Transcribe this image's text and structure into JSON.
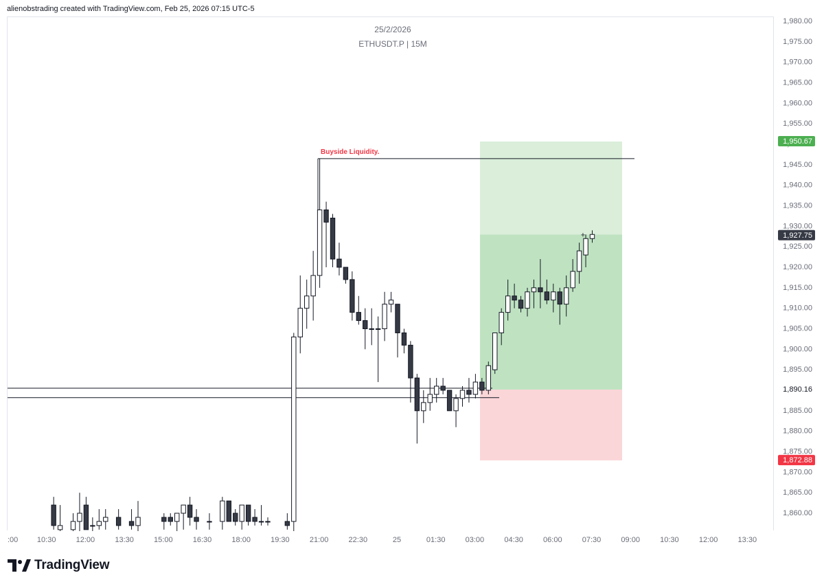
{
  "header": {
    "credit": "alienobstrading created with TradingView.com, Feb 25, 2026 07:15 UTC-5"
  },
  "footer": {
    "brand": "TradingView"
  },
  "chart_data": {
    "type": "candlestick",
    "title": "25/2/2026",
    "subtitle": "ETHUSDT.P | 15M",
    "ylim": [
      1855,
      1982
    ],
    "yticks": [
      1860,
      1865,
      1870,
      1875,
      1880,
      1885,
      1890,
      1895,
      1900,
      1905,
      1910,
      1915,
      1920,
      1925,
      1930,
      1935,
      1940,
      1945,
      1950,
      1955,
      1960,
      1965,
      1970,
      1975,
      1980
    ],
    "ytick_labels": [
      "1,860.00",
      "1,865.00",
      "1,870.00",
      "1,875.00",
      "1,880.00",
      "1,885.00",
      "1,890.00",
      "1,895.00",
      "1,900.00",
      "1,905.00",
      "1,910.00",
      "1,915.00",
      "1,920.00",
      "1,925.00",
      "1,930.00",
      "1,935.00",
      "1,940.00",
      "1,945.00",
      "1,950.00",
      "1,955.00",
      "1,960.00",
      "1,965.00",
      "1,970.00",
      "1,975.00",
      "1,980.00"
    ],
    "xtick_labels": [
      ":00",
      "10:30",
      "12:00",
      "13:30",
      "15:00",
      "16:30",
      "18:00",
      "19:30",
      "21:00",
      "22:30",
      "25",
      "01:30",
      "03:00",
      "04:30",
      "06:00",
      "07:30",
      "09:00",
      "10:30",
      "12:00",
      "13:30"
    ],
    "price_labels": [
      {
        "value": 1950.67,
        "text": "1,950.67",
        "color": "#4caf50"
      },
      {
        "value": 1927.75,
        "text": "1,927.75",
        "color": "#363a45"
      },
      {
        "value": 1890.16,
        "text": "1,890.16",
        "color": "#ffffff"
      },
      {
        "value": 1872.88,
        "text": "1,872.88",
        "color": "#f23645"
      }
    ],
    "annotations": [
      {
        "type": "text",
        "text": "Buyside Liquidity.",
        "color": "#f23645",
        "price": 1946.5
      },
      {
        "type": "line",
        "price": 1946.5
      },
      {
        "type": "line",
        "price": 1890.5
      },
      {
        "type": "line",
        "price": 1888.2
      }
    ],
    "position": {
      "entry": 1890.16,
      "target": 1950.67,
      "stop": 1872.88,
      "profit_color": "#4caf50",
      "loss_color": "#f23645"
    },
    "candles": [
      {
        "t": "10:45",
        "o": 1862,
        "h": 1864,
        "l": 1856,
        "c": 1857
      },
      {
        "t": "11:00",
        "o": 1856,
        "h": 1862,
        "l": 1854,
        "c": 1857
      },
      {
        "t": "11:30",
        "o": 1856,
        "h": 1860,
        "l": 1852,
        "c": 1858
      },
      {
        "t": "11:45",
        "o": 1858,
        "h": 1865,
        "l": 1855,
        "c": 1860
      },
      {
        "t": "12:00",
        "o": 1862,
        "h": 1864,
        "l": 1856,
        "c": 1856
      },
      {
        "t": "12:15",
        "o": 1857,
        "h": 1859,
        "l": 1854,
        "c": 1857
      },
      {
        "t": "12:30",
        "o": 1857,
        "h": 1861,
        "l": 1856,
        "c": 1858
      },
      {
        "t": "12:45",
        "o": 1858,
        "h": 1861,
        "l": 1856,
        "c": 1859
      },
      {
        "t": "13:15",
        "o": 1859,
        "h": 1861,
        "l": 1856,
        "c": 1857
      },
      {
        "t": "13:45",
        "o": 1858,
        "h": 1861,
        "l": 1856,
        "c": 1857
      },
      {
        "t": "14:00",
        "o": 1857,
        "h": 1863,
        "l": 1855,
        "c": 1859
      },
      {
        "t": "15:00",
        "o": 1859,
        "h": 1860,
        "l": 1856,
        "c": 1858
      },
      {
        "t": "15:15",
        "o": 1859,
        "h": 1860,
        "l": 1857,
        "c": 1858
      },
      {
        "t": "15:30",
        "o": 1858,
        "h": 1860,
        "l": 1855,
        "c": 1860
      },
      {
        "t": "15:45",
        "o": 1860,
        "h": 1862,
        "l": 1856,
        "c": 1862
      },
      {
        "t": "16:00",
        "o": 1862,
        "h": 1864,
        "l": 1857,
        "c": 1859
      },
      {
        "t": "16:15",
        "o": 1859,
        "h": 1861,
        "l": 1856,
        "c": 1858
      },
      {
        "t": "16:45",
        "o": 1858,
        "h": 1860,
        "l": 1856,
        "c": 1858
      },
      {
        "t": "17:15",
        "o": 1858,
        "h": 1864,
        "l": 1856,
        "c": 1863
      },
      {
        "t": "17:30",
        "o": 1863,
        "h": 1863,
        "l": 1858,
        "c": 1858
      },
      {
        "t": "17:45",
        "o": 1860,
        "h": 1861,
        "l": 1857,
        "c": 1858
      },
      {
        "t": "18:00",
        "o": 1858,
        "h": 1862,
        "l": 1856,
        "c": 1862
      },
      {
        "t": "18:15",
        "o": 1862,
        "h": 1862,
        "l": 1857,
        "c": 1858
      },
      {
        "t": "18:30",
        "o": 1859,
        "h": 1861,
        "l": 1857,
        "c": 1858
      },
      {
        "t": "18:45",
        "o": 1858,
        "h": 1862,
        "l": 1857,
        "c": 1858
      },
      {
        "t": "19:00",
        "o": 1858,
        "h": 1859,
        "l": 1857,
        "c": 1858
      },
      {
        "t": "19:45",
        "o": 1858,
        "h": 1860,
        "l": 1856,
        "c": 1857
      },
      {
        "t": "20:00",
        "o": 1858,
        "h": 1904,
        "l": 1852,
        "c": 1903
      },
      {
        "t": "20:15",
        "o": 1903,
        "h": 1918,
        "l": 1899,
        "c": 1910
      },
      {
        "t": "20:30",
        "o": 1910,
        "h": 1917,
        "l": 1905,
        "c": 1913
      },
      {
        "t": "20:45",
        "o": 1913,
        "h": 1924,
        "l": 1907,
        "c": 1918
      },
      {
        "t": "21:00",
        "o": 1918,
        "h": 1946.5,
        "l": 1915,
        "c": 1934
      },
      {
        "t": "21:15",
        "o": 1934,
        "h": 1936,
        "l": 1920,
        "c": 1931
      },
      {
        "t": "21:30",
        "o": 1932,
        "h": 1933,
        "l": 1920,
        "c": 1922
      },
      {
        "t": "21:45",
        "o": 1922,
        "h": 1926,
        "l": 1918,
        "c": 1920
      },
      {
        "t": "22:00",
        "o": 1920,
        "h": 1920,
        "l": 1916,
        "c": 1917
      },
      {
        "t": "22:15",
        "o": 1917,
        "h": 1919,
        "l": 1907,
        "c": 1909
      },
      {
        "t": "22:30",
        "o": 1909,
        "h": 1913,
        "l": 1906,
        "c": 1907
      },
      {
        "t": "22:45",
        "o": 1907,
        "h": 1910,
        "l": 1900,
        "c": 1905
      },
      {
        "t": "23:00",
        "o": 1905,
        "h": 1910,
        "l": 1901,
        "c": 1905
      },
      {
        "t": "23:15",
        "o": 1905,
        "h": 1908,
        "l": 1892,
        "c": 1905
      },
      {
        "t": "23:30",
        "o": 1905,
        "h": 1914,
        "l": 1902,
        "c": 1911
      },
      {
        "t": "23:45",
        "o": 1911,
        "h": 1914,
        "l": 1909,
        "c": 1912
      },
      {
        "t": "00:00",
        "o": 1911,
        "h": 1911,
        "l": 1898,
        "c": 1904
      },
      {
        "t": "00:15",
        "o": 1904,
        "h": 1905,
        "l": 1899,
        "c": 1901
      },
      {
        "t": "00:30",
        "o": 1901,
        "h": 1902,
        "l": 1887,
        "c": 1893
      },
      {
        "t": "00:45",
        "o": 1893,
        "h": 1894,
        "l": 1877,
        "c": 1885
      },
      {
        "t": "01:00",
        "o": 1885,
        "h": 1890,
        "l": 1882,
        "c": 1887
      },
      {
        "t": "01:15",
        "o": 1887,
        "h": 1893,
        "l": 1885,
        "c": 1889
      },
      {
        "t": "01:30",
        "o": 1889,
        "h": 1893,
        "l": 1887,
        "c": 1891
      },
      {
        "t": "01:45",
        "o": 1891,
        "h": 1893,
        "l": 1889,
        "c": 1890
      },
      {
        "t": "02:00",
        "o": 1890,
        "h": 1890,
        "l": 1885,
        "c": 1885
      },
      {
        "t": "02:15",
        "o": 1885,
        "h": 1889,
        "l": 1881,
        "c": 1888
      },
      {
        "t": "02:30",
        "o": 1888,
        "h": 1891,
        "l": 1886,
        "c": 1890
      },
      {
        "t": "02:45",
        "o": 1890,
        "h": 1893,
        "l": 1887,
        "c": 1889
      },
      {
        "t": "03:00",
        "o": 1889,
        "h": 1894,
        "l": 1888,
        "c": 1892
      },
      {
        "t": "03:15",
        "o": 1892,
        "h": 1893,
        "l": 1889,
        "c": 1890
      },
      {
        "t": "03:30",
        "o": 1890,
        "h": 1897,
        "l": 1889,
        "c": 1896
      },
      {
        "t": "03:45",
        "o": 1895,
        "h": 1904,
        "l": 1894,
        "c": 1904
      },
      {
        "t": "04:00",
        "o": 1904,
        "h": 1910,
        "l": 1901,
        "c": 1909
      },
      {
        "t": "04:15",
        "o": 1909,
        "h": 1917,
        "l": 1907,
        "c": 1913
      },
      {
        "t": "04:30",
        "o": 1913,
        "h": 1916,
        "l": 1910,
        "c": 1912
      },
      {
        "t": "04:45",
        "o": 1912,
        "h": 1913,
        "l": 1909,
        "c": 1910
      },
      {
        "t": "05:00",
        "o": 1910,
        "h": 1915,
        "l": 1908,
        "c": 1914
      },
      {
        "t": "05:15",
        "o": 1914,
        "h": 1917,
        "l": 1910,
        "c": 1915
      },
      {
        "t": "05:30",
        "o": 1915,
        "h": 1922,
        "l": 1910,
        "c": 1914
      },
      {
        "t": "05:45",
        "o": 1914,
        "h": 1917,
        "l": 1911,
        "c": 1912
      },
      {
        "t": "06:00",
        "o": 1912,
        "h": 1916,
        "l": 1909,
        "c": 1914
      },
      {
        "t": "06:15",
        "o": 1914,
        "h": 1915,
        "l": 1906,
        "c": 1911
      },
      {
        "t": "06:30",
        "o": 1911,
        "h": 1918,
        "l": 1908,
        "c": 1915
      },
      {
        "t": "06:45",
        "o": 1915,
        "h": 1922,
        "l": 1914,
        "c": 1919
      },
      {
        "t": "07:00",
        "o": 1919,
        "h": 1926,
        "l": 1916,
        "c": 1924
      },
      {
        "t": "07:15",
        "o": 1923,
        "h": 1928,
        "l": 1920,
        "c": 1927
      },
      {
        "t": "07:30",
        "o": 1927,
        "h": 1929,
        "l": 1926,
        "c": 1928
      }
    ]
  }
}
